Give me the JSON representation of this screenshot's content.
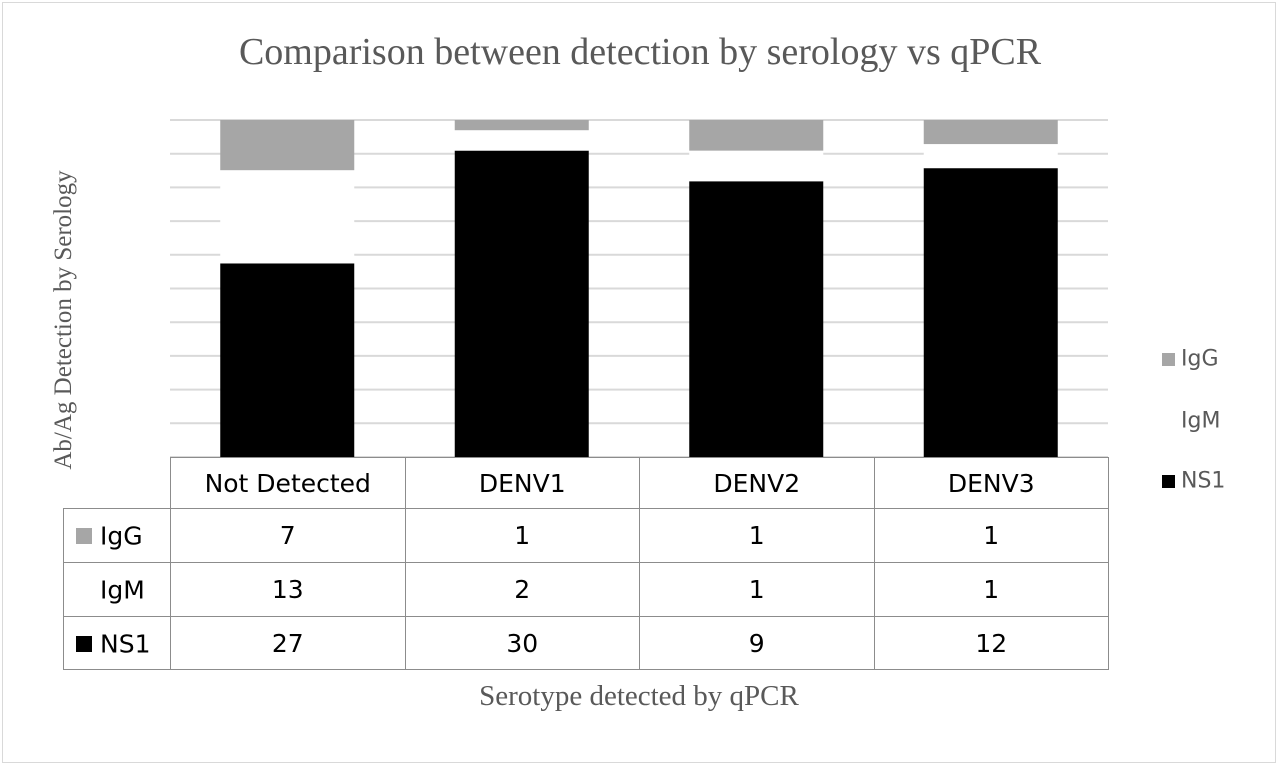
{
  "chart_data": {
    "type": "bar",
    "stacked": true,
    "title": "Comparison between detection by serology vs qPCR",
    "xlabel": "Serotype detected by qPCR",
    "ylabel": "Ab/Ag Detection by Serology",
    "categories": [
      "Not Detected",
      "DENV1",
      "DENV2",
      "DENV3"
    ],
    "series": [
      {
        "name": "NS1",
        "color": "#000000",
        "values": [
          27,
          30,
          9,
          12
        ]
      },
      {
        "name": "IgM",
        "color": "#ffffff",
        "values": [
          13,
          2,
          1,
          1
        ]
      },
      {
        "name": "IgG",
        "color": "#a6a6a6",
        "values": [
          7,
          1,
          1,
          1
        ]
      }
    ],
    "grid": true,
    "legend_position": "right",
    "legend_order": [
      "IgG",
      "IgM",
      "NS1"
    ],
    "data_table": true,
    "data_table_row_order": [
      "IgG",
      "IgM",
      "NS1"
    ]
  }
}
